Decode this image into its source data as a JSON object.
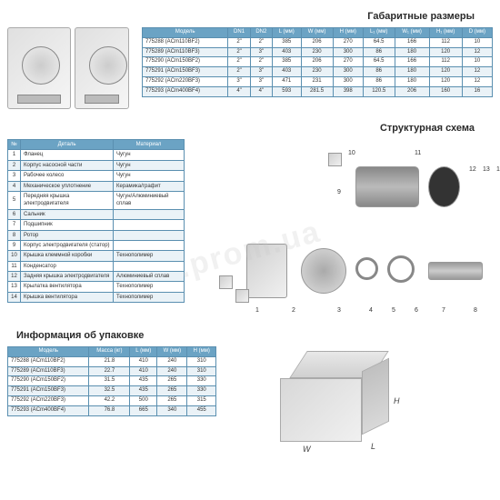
{
  "titles": {
    "dims": "Габаритные размеры",
    "struct": "Структурная схема",
    "pack": "Информация об упаковке"
  },
  "watermark": ".prom.ua",
  "dims_table": {
    "headers": [
      "Модель",
      "DN1",
      "DN2",
      "L (мм)",
      "W (мм)",
      "H (мм)",
      "L₁ (мм)",
      "W₁ (мм)",
      "H₁ (мм)",
      "D (мм)"
    ],
    "rows": [
      [
        "775288 (ACm110BF2)",
        "2\"",
        "2\"",
        "385",
        "206",
        "270",
        "64.5",
        "166",
        "112",
        "10"
      ],
      [
        "775289 (ACm110BF3)",
        "2\"",
        "3\"",
        "403",
        "230",
        "300",
        "86",
        "180",
        "120",
        "12"
      ],
      [
        "775290 (ACm150BF2)",
        "2\"",
        "2\"",
        "385",
        "206",
        "270",
        "64.5",
        "166",
        "112",
        "10"
      ],
      [
        "775291 (ACm150BF3)",
        "2\"",
        "3\"",
        "403",
        "230",
        "300",
        "86",
        "180",
        "120",
        "12"
      ],
      [
        "775292 (ACm220BF3)",
        "3\"",
        "3\"",
        "471",
        "231",
        "300",
        "86",
        "180",
        "120",
        "12"
      ],
      [
        "775293 (ACm400BF4)",
        "4\"",
        "4\"",
        "593",
        "281.5",
        "398",
        "120.5",
        "206",
        "160",
        "16"
      ]
    ],
    "th_bg": "#6ba3c4",
    "border": "#5a8fb0",
    "row_even": "#eaf2f7"
  },
  "parts_table": {
    "headers": [
      "№",
      "Деталь",
      "Материал"
    ],
    "rows": [
      [
        "1",
        "Фланец",
        "Чугун"
      ],
      [
        "2",
        "Корпус насосной части",
        "Чугун"
      ],
      [
        "3",
        "Рабочее колесо",
        "Чугун"
      ],
      [
        "4",
        "Механическое уплотнение",
        "Керамика/графит"
      ],
      [
        "5",
        "Передняя крышка электродвигателя",
        "Чугун/Алюминиевый сплав"
      ],
      [
        "6",
        "Сальник",
        ""
      ],
      [
        "7",
        "Подшипник",
        ""
      ],
      [
        "8",
        "Ротор",
        ""
      ],
      [
        "9",
        "Корпус электродвигателя (статор)",
        ""
      ],
      [
        "10",
        "Крышка клеммной коробки",
        "Технополимер"
      ],
      [
        "11",
        "Конденсатор",
        ""
      ],
      [
        "12",
        "Задняя крышка электродвигателя",
        "Алюминиевый сплав"
      ],
      [
        "13",
        "Крылатка вентилятора",
        "Технополимер"
      ],
      [
        "14",
        "Крышка вентилятора",
        "Технополимер"
      ]
    ]
  },
  "pack_table": {
    "headers": [
      "Модель",
      "Масса (кг)",
      "L (мм)",
      "W (мм)",
      "H (мм)"
    ],
    "rows": [
      [
        "775288 (ACm110BF2)",
        "21.8",
        "410",
        "240",
        "310"
      ],
      [
        "775289 (ACm110BF3)",
        "22.7",
        "410",
        "240",
        "310"
      ],
      [
        "775290 (ACm150BF2)",
        "31.5",
        "435",
        "265",
        "330"
      ],
      [
        "775291 (ACm150BF3)",
        "32.5",
        "435",
        "265",
        "330"
      ],
      [
        "775292 (ACm220BF3)",
        "42.2",
        "500",
        "265",
        "315"
      ],
      [
        "775293 (ACm400BF4)",
        "76.8",
        "665",
        "340",
        "455"
      ]
    ]
  },
  "exploded_labels": [
    "1",
    "2",
    "3",
    "4",
    "5",
    "6",
    "7",
    "8",
    "9",
    "10",
    "11",
    "12",
    "13",
    "14"
  ],
  "box_dims": {
    "h": "H",
    "w": "W",
    "l": "L"
  }
}
